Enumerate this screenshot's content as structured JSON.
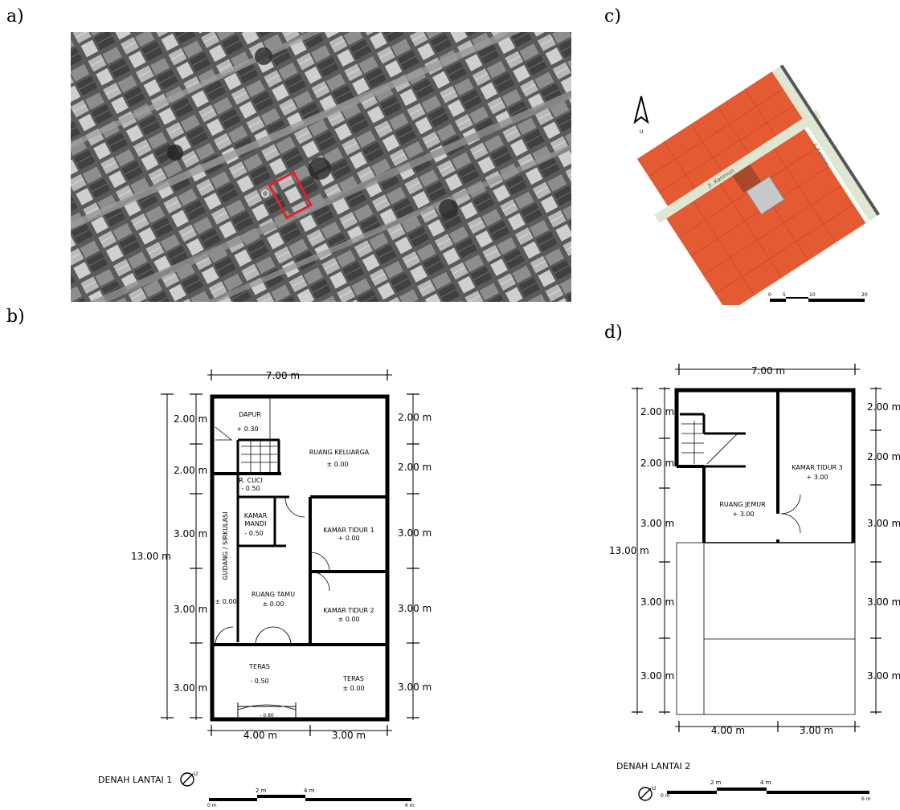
{
  "panels": {
    "a": "a)",
    "b": "b)",
    "c": "c)",
    "d": "d)"
  },
  "site_map": {
    "north_label": "U",
    "road_label_1": "Jl. Kanmun",
    "road_label_2": "Jl. Kanmun",
    "scale_ticks": [
      "0",
      "5",
      "10",
      "20"
    ]
  },
  "plan1": {
    "title": "DENAH LANTAI 1",
    "north_label": "U",
    "dim_width": "7.00 m",
    "dim_total_height": "13.00 m",
    "dim_left": [
      "2.00 m",
      "2.00 m",
      "3.00 m",
      "3.00 m",
      "3.00 m"
    ],
    "dim_right": [
      "2.00 m",
      "2.00 m",
      "3.00 m",
      "3.00 m",
      "3.00 m"
    ],
    "dim_bottom": [
      "4.00 m",
      "3.00 m"
    ],
    "rooms": {
      "dapur": "DAPUR",
      "dapur_lvl": "+ 0.30",
      "keluarga": "RUANG KELUARGA",
      "keluarga_lvl": "± 0.00",
      "cuci": "R. CUCI",
      "cuci_lvl": "- 0.50",
      "mandi_1": "KAMAR",
      "mandi_2": "MANDI",
      "mandi_lvl": "- 0.50",
      "kt1": "KAMAR TIDUR 1",
      "kt1_lvl": "+ 0.00",
      "gudang": "GUDANG / SIRKULASI",
      "gudang_lvl": "± 0.00",
      "tamu": "RUANG TAMU",
      "tamu_lvl": "± 0.00",
      "kt2": "KAMAR TIDUR 2",
      "kt2_lvl": "± 0.00",
      "teras_l": "TERAS",
      "teras_l_lvl": "- 0.50",
      "teras_r": "TERAS",
      "teras_r_lvl": "± 0.00",
      "step_lvl": "- 0.80"
    },
    "scale_ticks": [
      "0 m",
      "2 m",
      "4 m",
      "6 m"
    ]
  },
  "plan2": {
    "title": "DENAH LANTAI 2",
    "north_label": "U",
    "dim_width": "7.00 m",
    "dim_total_height": "13.00 m",
    "dim_left": [
      "2.00 m",
      "2.00 m",
      "3.00 m",
      "3.00 m",
      "3.00 m"
    ],
    "dim_right": [
      "2.00 m",
      "2.00 m",
      "3.00 m",
      "3.00 m",
      "3.00 m"
    ],
    "dim_bottom": [
      "4.00 m",
      "3.00 m"
    ],
    "rooms": {
      "jemur": "RUANG JEMUR",
      "jemur_lvl": "+ 3.00",
      "kt3": "KAMAR TIDUR 3",
      "kt3_lvl": "+ 3.00"
    },
    "scale_ticks": [
      "0 m",
      "2 m",
      "4 m",
      "6 m"
    ]
  }
}
